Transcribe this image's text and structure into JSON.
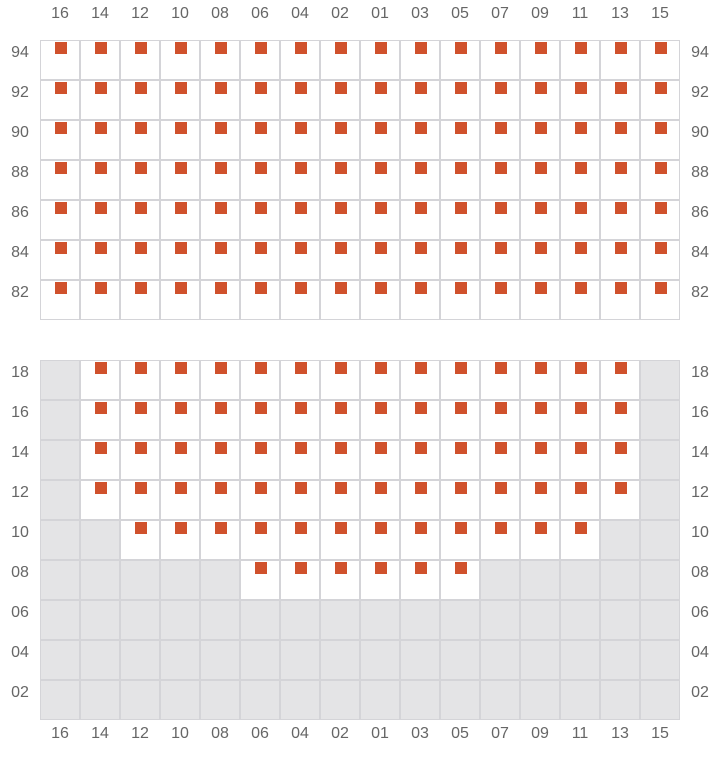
{
  "colors": {
    "seat": "#d0512c",
    "unavailable": "#e4e4e6",
    "grid": "#d4d4d8"
  },
  "columns": [
    "16",
    "14",
    "12",
    "10",
    "08",
    "06",
    "04",
    "02",
    "01",
    "03",
    "05",
    "07",
    "09",
    "11",
    "13",
    "15"
  ],
  "sections": [
    {
      "rows": [
        {
          "label": "94",
          "open": [
            "16",
            "14",
            "12",
            "10",
            "08",
            "06",
            "04",
            "02",
            "01",
            "03",
            "05",
            "07",
            "09",
            "11",
            "13",
            "15"
          ],
          "seats": [
            "16",
            "14",
            "12",
            "10",
            "08",
            "06",
            "04",
            "02",
            "01",
            "03",
            "05",
            "07",
            "09",
            "11",
            "13",
            "15"
          ]
        },
        {
          "label": "92",
          "open": [
            "16",
            "14",
            "12",
            "10",
            "08",
            "06",
            "04",
            "02",
            "01",
            "03",
            "05",
            "07",
            "09",
            "11",
            "13",
            "15"
          ],
          "seats": [
            "16",
            "14",
            "12",
            "10",
            "08",
            "06",
            "04",
            "02",
            "01",
            "03",
            "05",
            "07",
            "09",
            "11",
            "13",
            "15"
          ]
        },
        {
          "label": "90",
          "open": [
            "16",
            "14",
            "12",
            "10",
            "08",
            "06",
            "04",
            "02",
            "01",
            "03",
            "05",
            "07",
            "09",
            "11",
            "13",
            "15"
          ],
          "seats": [
            "16",
            "14",
            "12",
            "10",
            "08",
            "06",
            "04",
            "02",
            "01",
            "03",
            "05",
            "07",
            "09",
            "11",
            "13",
            "15"
          ]
        },
        {
          "label": "88",
          "open": [
            "16",
            "14",
            "12",
            "10",
            "08",
            "06",
            "04",
            "02",
            "01",
            "03",
            "05",
            "07",
            "09",
            "11",
            "13",
            "15"
          ],
          "seats": [
            "16",
            "14",
            "12",
            "10",
            "08",
            "06",
            "04",
            "02",
            "01",
            "03",
            "05",
            "07",
            "09",
            "11",
            "13",
            "15"
          ]
        },
        {
          "label": "86",
          "open": [
            "16",
            "14",
            "12",
            "10",
            "08",
            "06",
            "04",
            "02",
            "01",
            "03",
            "05",
            "07",
            "09",
            "11",
            "13",
            "15"
          ],
          "seats": [
            "16",
            "14",
            "12",
            "10",
            "08",
            "06",
            "04",
            "02",
            "01",
            "03",
            "05",
            "07",
            "09",
            "11",
            "13",
            "15"
          ]
        },
        {
          "label": "84",
          "open": [
            "16",
            "14",
            "12",
            "10",
            "08",
            "06",
            "04",
            "02",
            "01",
            "03",
            "05",
            "07",
            "09",
            "11",
            "13",
            "15"
          ],
          "seats": [
            "16",
            "14",
            "12",
            "10",
            "08",
            "06",
            "04",
            "02",
            "01",
            "03",
            "05",
            "07",
            "09",
            "11",
            "13",
            "15"
          ]
        },
        {
          "label": "82",
          "open": [
            "16",
            "14",
            "12",
            "10",
            "08",
            "06",
            "04",
            "02",
            "01",
            "03",
            "05",
            "07",
            "09",
            "11",
            "13",
            "15"
          ],
          "seats": [
            "16",
            "14",
            "12",
            "10",
            "08",
            "06",
            "04",
            "02",
            "01",
            "03",
            "05",
            "07",
            "09",
            "11",
            "13",
            "15"
          ]
        }
      ]
    },
    {
      "rows": [
        {
          "label": "18",
          "open": [
            "14",
            "12",
            "10",
            "08",
            "06",
            "04",
            "02",
            "01",
            "03",
            "05",
            "07",
            "09",
            "11",
            "13"
          ],
          "seats": [
            "14",
            "12",
            "10",
            "08",
            "06",
            "04",
            "02",
            "01",
            "03",
            "05",
            "07",
            "09",
            "11",
            "13"
          ]
        },
        {
          "label": "16",
          "open": [
            "14",
            "12",
            "10",
            "08",
            "06",
            "04",
            "02",
            "01",
            "03",
            "05",
            "07",
            "09",
            "11",
            "13"
          ],
          "seats": [
            "14",
            "12",
            "10",
            "08",
            "06",
            "04",
            "02",
            "01",
            "03",
            "05",
            "07",
            "09",
            "11",
            "13"
          ]
        },
        {
          "label": "14",
          "open": [
            "14",
            "12",
            "10",
            "08",
            "06",
            "04",
            "02",
            "01",
            "03",
            "05",
            "07",
            "09",
            "11",
            "13"
          ],
          "seats": [
            "14",
            "12",
            "10",
            "08",
            "06",
            "04",
            "02",
            "01",
            "03",
            "05",
            "07",
            "09",
            "11",
            "13"
          ]
        },
        {
          "label": "12",
          "open": [
            "14",
            "12",
            "10",
            "08",
            "06",
            "04",
            "02",
            "01",
            "03",
            "05",
            "07",
            "09",
            "11",
            "13"
          ],
          "seats": [
            "14",
            "12",
            "10",
            "08",
            "06",
            "04",
            "02",
            "01",
            "03",
            "05",
            "07",
            "09",
            "11",
            "13"
          ]
        },
        {
          "label": "10",
          "open": [
            "12",
            "10",
            "08",
            "06",
            "04",
            "02",
            "01",
            "03",
            "05",
            "07",
            "09",
            "11"
          ],
          "seats": [
            "12",
            "10",
            "08",
            "06",
            "04",
            "02",
            "01",
            "03",
            "05",
            "07",
            "09",
            "11"
          ]
        },
        {
          "label": "08",
          "open": [
            "06",
            "04",
            "02",
            "01",
            "03",
            "05"
          ],
          "seats": [
            "06",
            "04",
            "02",
            "01",
            "03",
            "05"
          ]
        },
        {
          "label": "06",
          "open": [],
          "seats": []
        },
        {
          "label": "04",
          "open": [],
          "seats": []
        },
        {
          "label": "02",
          "open": [],
          "seats": []
        }
      ]
    }
  ]
}
